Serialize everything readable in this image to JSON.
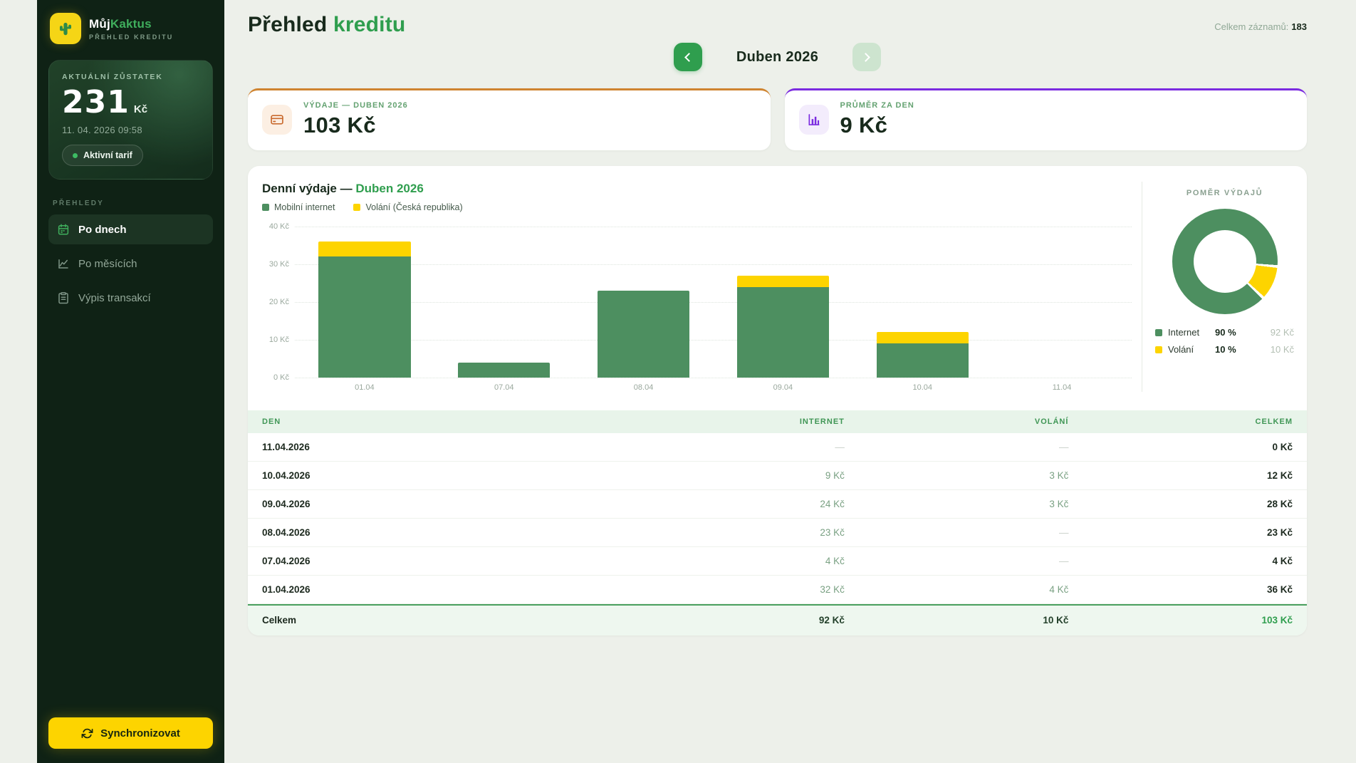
{
  "colors": {
    "accent_green": "#2f9e4e",
    "bar_green": "#4d8f60",
    "accent_yellow": "#fdd400",
    "card_orange": "#cf8430",
    "card_purple": "#7b2be0",
    "sidebar_bg": "#0f2215"
  },
  "brand": {
    "name_primary": "Můj",
    "name_accent": "Kaktus",
    "subtitle": "PŘEHLED KREDITU"
  },
  "sidebar": {
    "balance": {
      "label": "AKTUÁLNÍ ZŮSTATEK",
      "amount": "231",
      "currency": "Kč",
      "timestamp": "11. 04. 2026 09:58",
      "badge": "Aktivní tarif"
    },
    "section_label": "PŘEHLEDY",
    "items": [
      {
        "label": "Po dnech",
        "icon": "calendar-icon",
        "active": true
      },
      {
        "label": "Po měsících",
        "icon": "line-chart-icon",
        "active": false
      },
      {
        "label": "Výpis transakcí",
        "icon": "clipboard-icon",
        "active": false
      }
    ],
    "sync_label": "Synchronizovat"
  },
  "header": {
    "title_primary": "Přehled",
    "title_accent": "kreditu",
    "records_label": "Celkem záznamů:",
    "records_value": "183"
  },
  "month_nav": {
    "current": "Duben 2026"
  },
  "summary_cards": [
    {
      "label": "VÝDAJE — DUBEN 2026",
      "value": "103 Kč",
      "accent": "#cf8430",
      "icon": "credit-card-icon"
    },
    {
      "label": "PRŮMĚR ZA DEN",
      "value": "9 Kč",
      "accent": "#7b2be0",
      "icon": "bar-chart-icon"
    }
  ],
  "chart_data": [
    {
      "type": "bar",
      "stacked": true,
      "title_primary": "Denní výdaje —",
      "title_accent": "Duben 2026",
      "categories": [
        "01.04",
        "07.04",
        "08.04",
        "09.04",
        "10.04",
        "11.04"
      ],
      "series": [
        {
          "name": "Mobilní internet",
          "color": "#4d8f60",
          "values": [
            32,
            4,
            23,
            24,
            9,
            0
          ]
        },
        {
          "name": "Volání (Česká republika)",
          "color": "#fdd400",
          "values": [
            4,
            0,
            0,
            3,
            3,
            0
          ]
        }
      ],
      "ylim": [
        0,
        40
      ],
      "ytick_labels": [
        "40 Kč",
        "30 Kč",
        "20 Kč",
        "10 Kč",
        "0 Kč"
      ],
      "grid": "dotted-horizontal",
      "legend_position": "top-left"
    },
    {
      "type": "donut",
      "title": "POMĚR VÝDAJŮ",
      "slices": [
        {
          "name": "Internet",
          "pct": 90,
          "pct_label": "90 %",
          "amount": "92 Kč",
          "color": "#4d8f60"
        },
        {
          "name": "Volání",
          "pct": 10,
          "pct_label": "10 %",
          "amount": "10 Kč",
          "color": "#fdd400"
        }
      ],
      "legend_position": "bottom"
    }
  ],
  "table": {
    "columns": [
      "DEN",
      "INTERNET",
      "VOLÁNÍ",
      "CELKEM"
    ],
    "rows": [
      [
        "11.04.2026",
        "—",
        "—",
        "0 Kč"
      ],
      [
        "10.04.2026",
        "9 Kč",
        "3 Kč",
        "12 Kč"
      ],
      [
        "09.04.2026",
        "24 Kč",
        "3 Kč",
        "28 Kč"
      ],
      [
        "08.04.2026",
        "23 Kč",
        "—",
        "23 Kč"
      ],
      [
        "07.04.2026",
        "4 Kč",
        "—",
        "4 Kč"
      ],
      [
        "01.04.2026",
        "32 Kč",
        "4 Kč",
        "36 Kč"
      ]
    ],
    "footer": [
      "Celkem",
      "92 Kč",
      "10 Kč",
      "103 Kč"
    ]
  }
}
